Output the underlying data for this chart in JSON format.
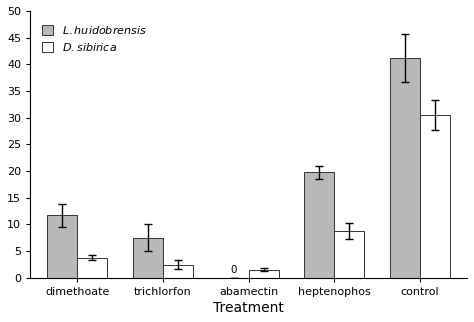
{
  "categories": [
    "dimethoate",
    "trichlorfon",
    "abamectin",
    "heptenophos",
    "control"
  ],
  "lh_values": [
    11.7,
    7.5,
    0.0,
    19.8,
    41.2
  ],
  "ds_values": [
    3.8,
    2.5,
    1.5,
    8.7,
    30.5
  ],
  "lh_errors": [
    2.2,
    2.5,
    0.0,
    1.2,
    4.5
  ],
  "ds_errors": [
    0.5,
    0.8,
    0.3,
    1.5,
    2.8
  ],
  "lh_color": "#b8b8b8",
  "ds_color": "#ffffff",
  "bar_edgecolor": "#333333",
  "bar_width": 0.35,
  "ylim": [
    0,
    50
  ],
  "yticks": [
    0,
    5,
    10,
    15,
    20,
    25,
    30,
    35,
    40,
    45,
    50
  ],
  "xlabel": "Treatment",
  "abamectin_label": "0",
  "capsize": 3,
  "elinewidth": 1.0
}
